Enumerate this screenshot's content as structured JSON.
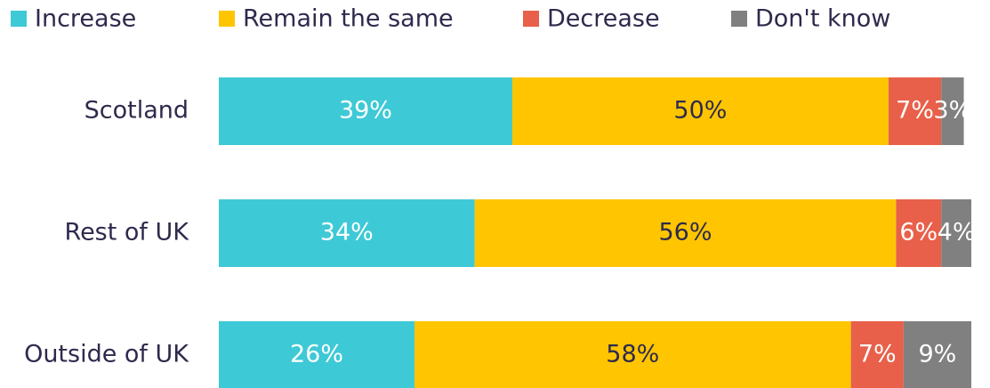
{
  "chart_data": {
    "type": "stacked-bar-horizontal",
    "categories": [
      "Scotland",
      "Rest of UK",
      "Outside of UK"
    ],
    "series": [
      {
        "name": "Increase",
        "color": "#3ec9d6",
        "values": [
          39,
          34,
          26
        ],
        "value_labels": [
          "39%",
          "34%",
          "26%"
        ]
      },
      {
        "name": "Remain the same",
        "color": "#ffc500",
        "values": [
          50,
          56,
          58
        ],
        "value_labels": [
          "50%",
          "56%",
          "58%"
        ]
      },
      {
        "name": "Decrease",
        "color": "#e8604a",
        "values": [
          7,
          6,
          7
        ],
        "value_labels": [
          "7%",
          "6%",
          "7%"
        ]
      },
      {
        "name": "Don't know",
        "color": "#808080",
        "values": [
          3,
          4,
          9
        ],
        "value_labels": [
          "3%",
          "4%",
          "9%"
        ]
      }
    ],
    "xlim": [
      0,
      100
    ],
    "legend": "top"
  }
}
